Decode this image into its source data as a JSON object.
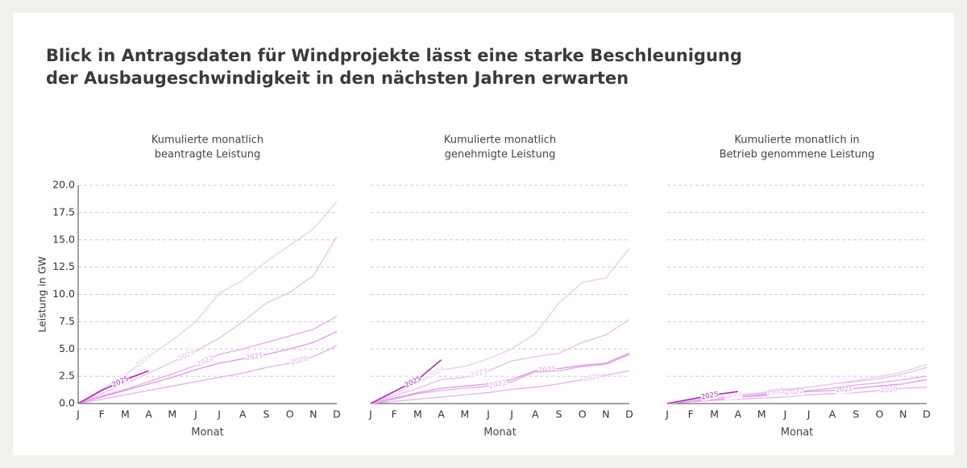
{
  "title": [
    "Blick in Antragsdaten für Windprojekte lässt eine starke Beschleunigung",
    "der Ausbaugeschwindigkeit in den nächsten Jahren erwarten"
  ],
  "chart_data": [
    {
      "type": "line",
      "title": [
        "Kumulierte monatlich",
        "beantragte Leistung"
      ],
      "xlabel": "Monat",
      "ylabel": "Leistung in GW",
      "categories": [
        "J",
        "F",
        "M",
        "A",
        "M",
        "J",
        "J",
        "A",
        "S",
        "O",
        "N",
        "D"
      ],
      "ylim": [
        0,
        20
      ],
      "yticks": [
        {
          "value": 0,
          "label": "0.0"
        },
        2.5,
        {
          "value": 5,
          "label": "5.0"
        },
        7.5,
        {
          "value": 10,
          "label": "10.0"
        },
        12.5,
        {
          "value": 15,
          "label": "15.0"
        },
        17.5,
        {
          "value": 20,
          "label": "20.0"
        }
      ],
      "grid": true,
      "series": [
        {
          "name": "2020",
          "color": "#e6b0ec",
          "values": [
            0,
            0.4,
            0.8,
            1.2,
            1.6,
            2.0,
            2.4,
            2.8,
            3.3,
            3.7,
            4.3,
            5.3
          ]
        },
        {
          "name": "2021",
          "color": "#dd95e6",
          "values": [
            0,
            0.6,
            1.2,
            1.8,
            2.4,
            3.1,
            3.7,
            4.1,
            4.5,
            5.0,
            5.6,
            6.6
          ]
        },
        {
          "name": "2022",
          "color": "#e3a9ea",
          "values": [
            0,
            0.7,
            1.3,
            2.0,
            2.7,
            3.5,
            4.5,
            5.0,
            5.6,
            6.2,
            6.8,
            8.0
          ]
        },
        {
          "name": "2023",
          "color": "#e8bdee",
          "values": [
            0,
            0.9,
            1.8,
            2.8,
            3.8,
            4.8,
            6.0,
            7.5,
            9.2,
            10.2,
            11.7,
            15.3
          ]
        },
        {
          "name": "2024",
          "color": "#ecc9f1",
          "values": [
            0,
            1.3,
            2.6,
            4.3,
            5.8,
            7.5,
            10.1,
            11.3,
            13.0,
            14.5,
            16.0,
            18.5
          ]
        },
        {
          "name": "2025",
          "color": "#b424bd",
          "values": [
            0,
            1.2,
            2.2,
            3.0,
            null,
            null,
            null,
            null,
            null,
            null,
            null,
            null
          ]
        }
      ]
    },
    {
      "type": "line",
      "title": [
        "Kumulierte monatlich",
        "genehmigte Leistung"
      ],
      "xlabel": "Monat",
      "sharey": true,
      "categories": [
        "J",
        "F",
        "M",
        "A",
        "M",
        "J",
        "J",
        "A",
        "S",
        "O",
        "N",
        "D"
      ],
      "series": [
        {
          "name": "2020",
          "color": "#e6b0ec",
          "values": [
            0,
            0.2,
            0.4,
            0.6,
            0.8,
            1.0,
            1.3,
            1.5,
            1.8,
            2.2,
            2.6,
            3.0
          ]
        },
        {
          "name": "2021",
          "color": "#dd95e6",
          "values": [
            0,
            0.5,
            1.0,
            1.4,
            1.6,
            1.8,
            2.2,
            3.0,
            3.2,
            3.5,
            3.7,
            4.6
          ]
        },
        {
          "name": "2022",
          "color": "#e3a9ea",
          "values": [
            0,
            0.4,
            0.9,
            1.2,
            1.4,
            1.6,
            2.0,
            2.9,
            3.0,
            3.4,
            3.6,
            4.5
          ]
        },
        {
          "name": "2023",
          "color": "#e8bdee",
          "values": [
            0,
            0.7,
            1.4,
            2.2,
            2.4,
            3.0,
            3.9,
            4.3,
            4.6,
            5.6,
            6.3,
            7.7
          ]
        },
        {
          "name": "2024",
          "color": "#ecc9f1",
          "values": [
            0,
            0.9,
            1.9,
            3.1,
            3.4,
            4.1,
            5.0,
            6.4,
            9.2,
            11.1,
            11.5,
            14.2
          ]
        },
        {
          "name": "2025",
          "color": "#b424bd",
          "values": [
            0,
            1.1,
            2.2,
            4.0,
            null,
            null,
            null,
            null,
            null,
            null,
            null,
            null
          ]
        }
      ]
    },
    {
      "type": "line",
      "title": [
        "Kumulierte monatlich in",
        "Betrieb genommene Leistung"
      ],
      "xlabel": "Monat",
      "sharey": true,
      "categories": [
        "J",
        "F",
        "M",
        "A",
        "M",
        "J",
        "J",
        "A",
        "S",
        "O",
        "N",
        "D"
      ],
      "series": [
        {
          "name": "2020",
          "color": "#e6b0ec",
          "values": [
            0,
            0.15,
            0.3,
            0.4,
            0.5,
            0.6,
            0.8,
            0.9,
            1.0,
            1.2,
            1.4,
            1.5
          ]
        },
        {
          "name": "2021",
          "color": "#dd95e6",
          "values": [
            0,
            0.2,
            0.4,
            0.6,
            0.7,
            0.9,
            1.1,
            1.2,
            1.4,
            1.6,
            1.8,
            2.2
          ]
        },
        {
          "name": "2022",
          "color": "#e3a9ea",
          "values": [
            0,
            0.2,
            0.4,
            0.6,
            0.8,
            1.0,
            1.2,
            1.4,
            1.7,
            1.9,
            2.2,
            2.5
          ]
        },
        {
          "name": "2023",
          "color": "#e8bdee",
          "values": [
            0,
            0.3,
            0.5,
            0.7,
            0.9,
            1.2,
            1.5,
            1.8,
            2.0,
            2.3,
            2.7,
            3.3
          ]
        },
        {
          "name": "2024",
          "color": "#ecc9f1",
          "values": [
            0,
            0.3,
            0.6,
            0.8,
            1.0,
            1.3,
            1.5,
            1.8,
            2.1,
            2.5,
            2.9,
            3.6
          ]
        },
        {
          "name": "2025",
          "color": "#b424bd",
          "values": [
            0,
            0.4,
            0.8,
            1.1,
            null,
            null,
            null,
            null,
            null,
            null,
            null,
            null
          ]
        }
      ]
    }
  ]
}
